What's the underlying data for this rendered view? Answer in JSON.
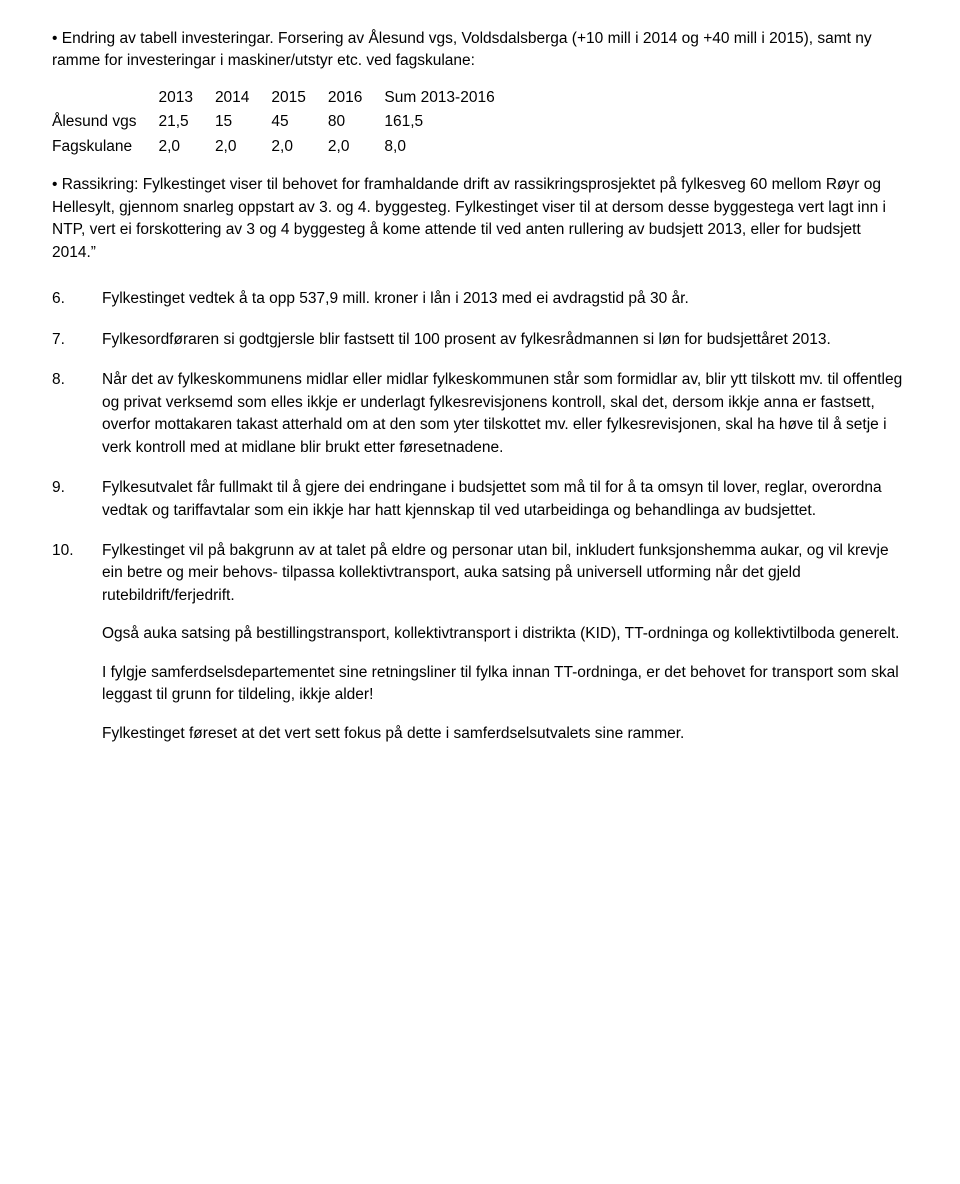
{
  "intro": {
    "p1": "• Endring av tabell investeringar. Forsering av Ålesund vgs, Voldsdalsberga (+10 mill i 2014 og +40 mill i 2015), samt ny ramme for investeringar i maskiner/utstyr etc. ved fagskulane:"
  },
  "table": {
    "headers": [
      "",
      "2013",
      "2014",
      "2015",
      "2016",
      "Sum 2013-2016"
    ],
    "rows": [
      [
        "Ålesund vgs",
        "21,5",
        "15",
        "45",
        "80",
        "161,5"
      ],
      [
        "Fagskulane",
        "2,0",
        "2,0",
        "2,0",
        "2,0",
        "8,0"
      ]
    ]
  },
  "after_table": "• Rassikring: Fylkestinget viser til behovet for framhaldande drift av rassikringsprosjektet på fylkesveg 60 mellom Røyr og Hellesylt, gjennom snarleg oppstart av 3. og 4. byggesteg. Fylkestinget viser til at dersom desse byggestega vert lagt inn i NTP, vert ei forskottering av 3 og 4 byggesteg å kome attende til ved anten rullering av budsjett 2013, eller for budsjett 2014.”",
  "items": [
    {
      "num": "6.",
      "paras": [
        "Fylkestinget vedtek å ta opp 537,9 mill. kroner i lån i 2013 med ei avdragstid på 30 år."
      ]
    },
    {
      "num": "7.",
      "paras": [
        "Fylkesordføraren si godtgjersle blir fastsett til 100 prosent av fylkesrådmannen si løn for budsjettåret 2013."
      ]
    },
    {
      "num": "8.",
      "paras": [
        "Når det av fylkeskommunens midlar eller midlar fylkeskommunen står som formidlar av, blir ytt tilskott mv. til offentleg og privat verksemd som elles ikkje er underlagt fylkesrevisjonens kontroll, skal det, dersom ikkje anna er fastsett, overfor mottakaren takast atterhald om at den som yter tilskottet mv. eller fylkesrevisjonen, skal ha høve til å setje i verk kontroll med at midlane blir brukt etter føresetnadene."
      ]
    },
    {
      "num": "9.",
      "paras": [
        "Fylkesutvalet får fullmakt til å gjere dei endringane i budsjettet som må til for å ta omsyn til lover, reglar, overordna vedtak og tariffavtalar som ein ikkje har hatt kjennskap til ved utarbeidinga og behandlinga av budsjettet."
      ]
    },
    {
      "num": "10.",
      "paras": [
        "Fylkestinget vil på bakgrunn av at talet på eldre og personar utan bil, inkludert funksjonshemma aukar, og vil krevje ein betre og meir behovs- tilpassa kollektivtransport, auka satsing på universell utforming når det gjeld rutebildrift/ferjedrift.",
        "Også auka satsing på bestillingstransport, kollektivtransport i distrikta (KID), TT-ordninga og kollektivtilboda generelt.",
        "I fylgje samferdselsdepartementet sine retningsliner til fylka innan TT-ordninga, er det behovet for transport som skal leggast til grunn for tildeling, ikkje alder!",
        "Fylkestinget føreset at det vert sett fokus på dette i samferdselsutvalets sine rammer."
      ]
    }
  ]
}
